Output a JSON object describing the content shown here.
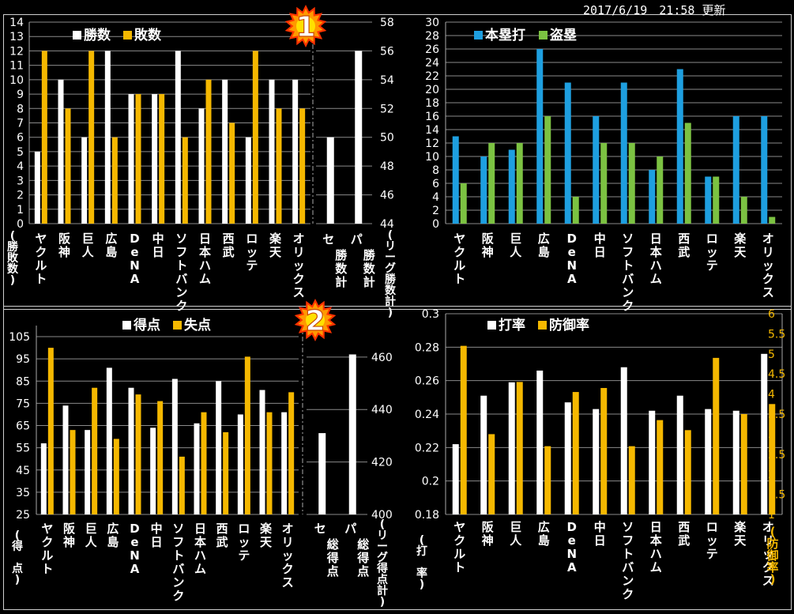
{
  "timestamp": "2017/6/19　21:58 更新",
  "badges": [
    "1",
    "2"
  ],
  "colors": {
    "white": "#ffffff",
    "orange": "#f5b800",
    "blue": "#1e9fe0",
    "green": "#7cc242",
    "badge": "#ff9900",
    "badge_edge": "#ff3300"
  },
  "teams": [
    "ヤクルト",
    "阪神",
    "巨人",
    "広島",
    "DeNA",
    "中日",
    "ソフトバンク",
    "日本ハム",
    "西武",
    "ロッテ",
    "楽天",
    "オリックス"
  ],
  "chart_data": [
    {
      "id": "wins_losses",
      "type": "bar",
      "series": [
        {
          "name": "勝数",
          "color": "#ffffff",
          "values": [
            5,
            10,
            6,
            12,
            9,
            9,
            12,
            8,
            10,
            6,
            10,
            10
          ]
        },
        {
          "name": "敗数",
          "color": "#f5b800",
          "values": [
            12,
            8,
            12,
            6,
            9,
            9,
            6,
            10,
            7,
            12,
            8,
            8
          ]
        }
      ],
      "ylim": [
        0,
        14
      ],
      "yticks": [
        0,
        1,
        2,
        3,
        4,
        5,
        6,
        7,
        8,
        9,
        10,
        11,
        12,
        13,
        14
      ],
      "ylabel": "(勝敗数)",
      "secondary": {
        "categories": [
          "セ\n勝数計",
          "パ\n勝数計"
        ],
        "values": [
          50,
          56
        ],
        "ylim": [
          44,
          58
        ],
        "yticks": [
          44,
          46,
          48,
          50,
          52,
          54,
          56,
          58
        ],
        "ylabel": "(リーグ勝数計)"
      }
    },
    {
      "id": "hr_sb",
      "type": "bar",
      "series": [
        {
          "name": "本塁打",
          "color": "#1e9fe0",
          "values": [
            13,
            10,
            11,
            26,
            21,
            16,
            21,
            8,
            23,
            7,
            16,
            16
          ]
        },
        {
          "name": "盗塁",
          "color": "#7cc242",
          "values": [
            6,
            12,
            12,
            16,
            4,
            12,
            12,
            10,
            15,
            7,
            4,
            1
          ]
        }
      ],
      "ylim": [
        0,
        30
      ],
      "yticks": [
        0,
        2,
        4,
        6,
        8,
        10,
        12,
        14,
        16,
        18,
        20,
        22,
        24,
        26,
        28,
        30
      ]
    },
    {
      "id": "runs",
      "type": "bar",
      "series": [
        {
          "name": "得点",
          "color": "#ffffff",
          "values": [
            57,
            74,
            63,
            91,
            82,
            64,
            86,
            66,
            85,
            70,
            81,
            71
          ]
        },
        {
          "name": "失点",
          "color": "#f5b800",
          "values": [
            100,
            63,
            82,
            59,
            79,
            76,
            51,
            71,
            62,
            96,
            71,
            80
          ]
        }
      ],
      "ylim": [
        25,
        110
      ],
      "yticks": [
        25,
        35,
        45,
        55,
        65,
        75,
        85,
        95,
        105
      ],
      "ylabel": "(得　点)",
      "secondary": {
        "categories": [
          "セ\n総得点",
          "パ\n総得点"
        ],
        "values": [
          431,
          461
        ],
        "ylim": [
          400,
          472
        ],
        "yticks": [
          400,
          420,
          440,
          460
        ],
        "ylabel": "(リーグ得点計)"
      }
    },
    {
      "id": "avg_era",
      "type": "bar",
      "series": [
        {
          "name": "打率",
          "color": "#ffffff",
          "values": [
            0.222,
            0.251,
            0.259,
            0.266,
            0.247,
            0.243,
            0.268,
            0.242,
            0.251,
            0.243,
            0.242,
            0.276
          ]
        },
        {
          "name": "防御率",
          "color": "#f5b800",
          "values": [
            5.2,
            3.0,
            4.3,
            2.7,
            4.05,
            4.15,
            2.7,
            3.35,
            3.1,
            4.9,
            3.5,
            3.75
          ]
        }
      ],
      "ylim": [
        0.18,
        0.3
      ],
      "yticks": [
        "0.18",
        "0.2",
        "0.22",
        "0.24",
        "0.26",
        "0.28",
        "0.3"
      ],
      "ylabel": "(打　率)",
      "secondary": {
        "ylim": [
          1,
          6
        ],
        "yticks": [
          "1",
          "1.5",
          "2",
          "2.5",
          "3",
          "3.5",
          "4",
          "4.5",
          "5",
          "5.5",
          "6"
        ],
        "ylabel": "(防御率)"
      }
    }
  ]
}
